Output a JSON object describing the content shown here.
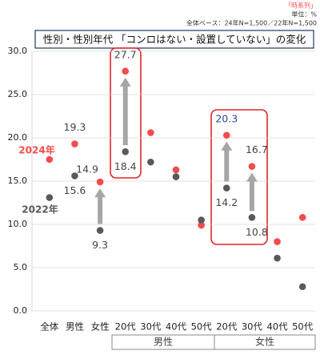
{
  "chart_data": {
    "type": "dot",
    "note_top": "「時系列」",
    "unit": "単位：%",
    "base": "全体ベース：24年N=1,500／22年N=1,500",
    "title": "性別・性別年代 「コンロはない・設置していない」の変化",
    "categories": [
      "全体",
      "男性",
      "女性",
      "20代",
      "30代",
      "40代",
      "50代",
      "20代",
      "30代",
      "40代",
      "50代"
    ],
    "groups": [
      "男性",
      "女性"
    ],
    "series": [
      {
        "name": "2024年",
        "color": "#f24c4c",
        "values": [
          17.5,
          19.3,
          14.9,
          27.7,
          20.6,
          16.3,
          9.9,
          20.3,
          16.7,
          8.0,
          10.8
        ],
        "value_labels": [
          null,
          "19.3",
          "14.9",
          "27.7",
          null,
          null,
          null,
          "20.3",
          "16.7",
          null,
          null
        ]
      },
      {
        "name": "2022年",
        "color": "#595959",
        "values": [
          13.1,
          15.6,
          9.3,
          18.4,
          17.2,
          15.5,
          10.5,
          14.2,
          10.8,
          6.1,
          2.8
        ],
        "value_labels": [
          null,
          "15.6",
          "9.3",
          "18.4",
          null,
          null,
          null,
          "14.2",
          "10.8",
          null,
          null
        ]
      }
    ],
    "ylim": [
      0,
      30
    ],
    "yticks": [
      {
        "value": 0,
        "label": "0.0"
      },
      {
        "value": 5,
        "label": "5.0"
      },
      {
        "value": 10,
        "label": "10.0"
      },
      {
        "value": 15,
        "label": "15.0"
      },
      {
        "value": 20,
        "label": "20.0"
      },
      {
        "value": 25,
        "label": "25.0"
      },
      {
        "value": 30,
        "label": "30.0"
      }
    ],
    "grid": true
  }
}
